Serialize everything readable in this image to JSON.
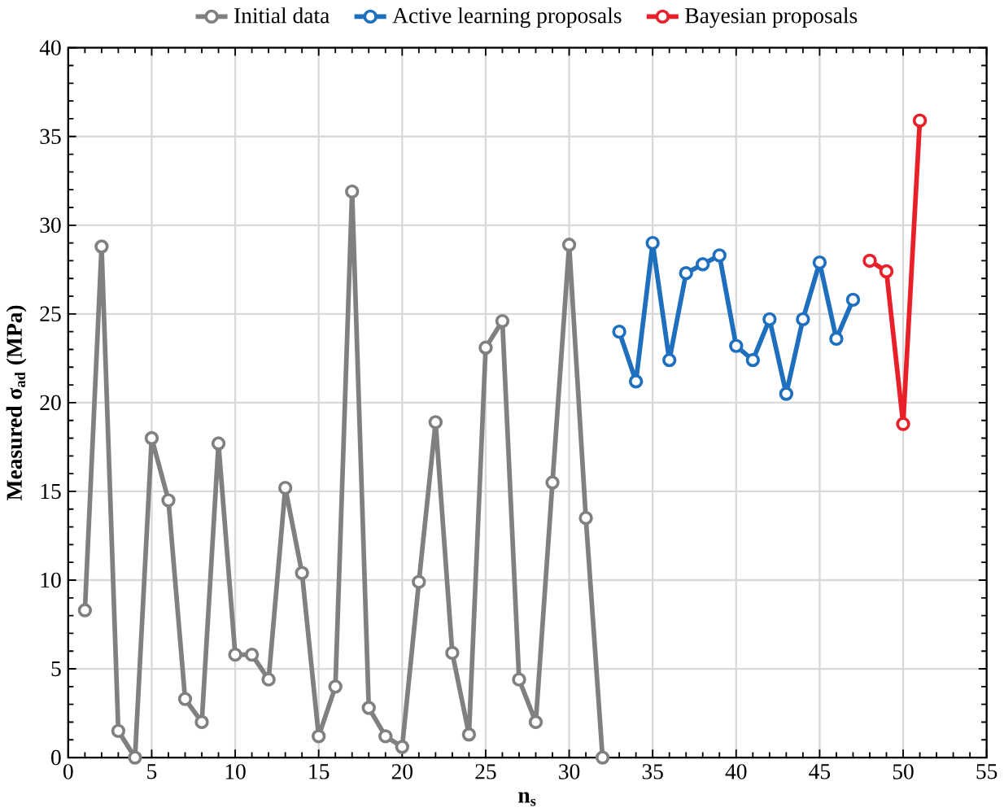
{
  "chart_data": {
    "type": "line",
    "xlabel": "n$_{s}$",
    "ylabel": "Measured σ$_{ad}$ (MPa)",
    "xlim": [
      0,
      55
    ],
    "xticks": [
      0,
      5,
      10,
      15,
      20,
      25,
      30,
      35,
      40,
      45,
      50,
      55
    ],
    "ylim": [
      0,
      40
    ],
    "yticks": [
      0,
      5,
      10,
      15,
      20,
      25,
      30,
      35,
      40
    ],
    "grid": true,
    "legend": "top",
    "marker": "circle",
    "line_style": "solid",
    "series": [
      {
        "name": "Initial data",
        "color": "#808080",
        "x": [
          1,
          2,
          3,
          4,
          5,
          6,
          7,
          8,
          9,
          10,
          11,
          12,
          13,
          14,
          15,
          16,
          17,
          18,
          19,
          20,
          21,
          22,
          23,
          24,
          25,
          26,
          27,
          28,
          29,
          30,
          31,
          32
        ],
        "values": [
          8.3,
          28.8,
          1.5,
          0,
          18,
          14.5,
          3.3,
          2,
          17.7,
          5.8,
          5.8,
          4.4,
          15.2,
          10.4,
          1.2,
          4,
          31.9,
          2.8,
          1.2,
          0.6,
          9.9,
          18.9,
          5.9,
          1.3,
          23.1,
          24.6,
          4.4,
          2,
          15.5,
          28.9,
          13.5,
          0
        ]
      },
      {
        "name": "Active learning proposals",
        "color": "#1f6fbf",
        "x": [
          33,
          34,
          35,
          36,
          37,
          38,
          39,
          40,
          41,
          42,
          43,
          44,
          45,
          46,
          47
        ],
        "values": [
          24,
          21.2,
          29,
          22.4,
          27.3,
          27.8,
          28.3,
          23.2,
          22.4,
          24.7,
          20.5,
          24.7,
          27.9,
          23.6,
          25.8
        ]
      },
      {
        "name": "Bayesian proposals",
        "color": "#e8202a",
        "x": [
          48,
          49,
          50,
          51
        ],
        "values": [
          28,
          27.4,
          18.8,
          35.9
        ]
      }
    ]
  }
}
